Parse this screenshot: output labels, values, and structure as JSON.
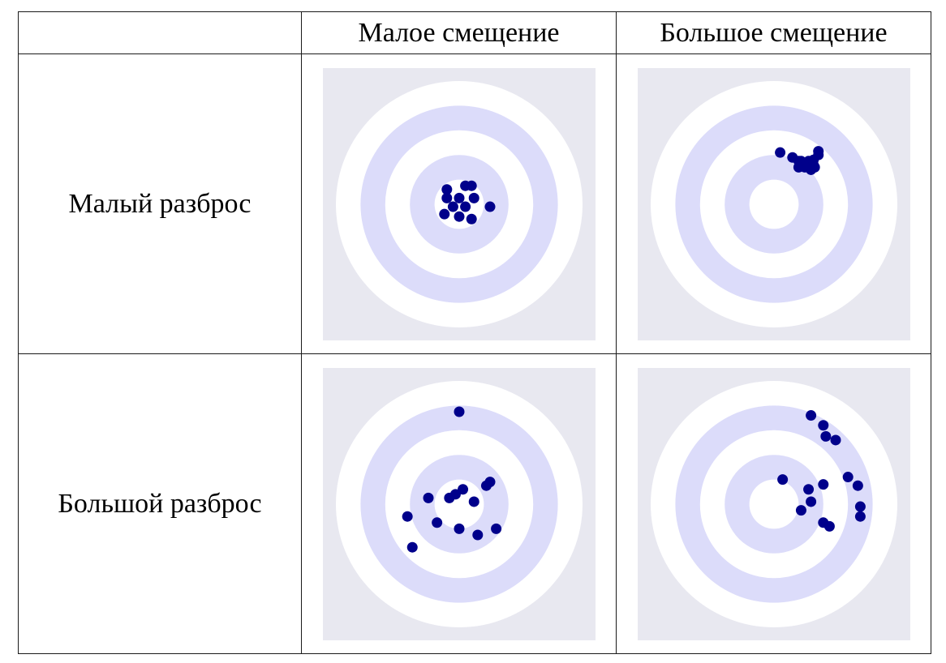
{
  "columns": {
    "low_bias": "Малое смещение",
    "high_bias": "Большое смещение"
  },
  "rows": {
    "low_variance": "Малый разброс",
    "high_variance": "Большой разброс"
  },
  "colors": {
    "background": "#e8e8f0",
    "ring_white": "#ffffff",
    "ring_blue": "#dcdcfa",
    "dot": "#00008b"
  },
  "target": {
    "rings": 5,
    "ring_fill_order": [
      "white",
      "blue",
      "white",
      "blue",
      "white"
    ]
  },
  "panels": {
    "low_bias_low_variance": {
      "row": "low_variance",
      "column": "low_bias",
      "shots": [
        [
          0.05,
          0.15
        ],
        [
          0.1,
          0.15
        ],
        [
          -0.1,
          0.05
        ],
        [
          0.0,
          0.05
        ],
        [
          0.12,
          0.05
        ],
        [
          -0.05,
          -0.02
        ],
        [
          0.05,
          -0.02
        ],
        [
          -0.12,
          -0.08
        ],
        [
          0.0,
          -0.1
        ],
        [
          0.1,
          -0.12
        ],
        [
          0.25,
          -0.02
        ],
        [
          -0.1,
          0.12
        ]
      ]
    },
    "high_bias_low_variance": {
      "row": "low_variance",
      "column": "high_bias",
      "shots": [
        [
          0.05,
          0.42
        ],
        [
          0.15,
          0.38
        ],
        [
          0.2,
          0.35
        ],
        [
          0.22,
          0.35
        ],
        [
          0.28,
          0.35
        ],
        [
          0.32,
          0.36
        ],
        [
          0.32,
          0.32
        ],
        [
          0.33,
          0.3
        ],
        [
          0.25,
          0.3
        ],
        [
          0.3,
          0.28
        ],
        [
          0.36,
          0.4
        ],
        [
          0.36,
          0.43
        ],
        [
          0.2,
          0.3
        ]
      ]
    },
    "low_bias_high_variance": {
      "row": "high_variance",
      "column": "low_bias",
      "shots": [
        [
          0.0,
          0.75
        ],
        [
          -0.25,
          0.05
        ],
        [
          -0.08,
          0.05
        ],
        [
          -0.03,
          0.08
        ],
        [
          0.03,
          0.12
        ],
        [
          0.12,
          0.02
        ],
        [
          0.22,
          0.15
        ],
        [
          0.25,
          0.18
        ],
        [
          -0.42,
          -0.1
        ],
        [
          -0.18,
          -0.15
        ],
        [
          0.0,
          -0.2
        ],
        [
          0.15,
          -0.25
        ],
        [
          0.3,
          -0.2
        ],
        [
          -0.38,
          -0.35
        ]
      ]
    },
    "high_bias_high_variance": {
      "row": "high_variance",
      "column": "high_bias",
      "shots": [
        [
          0.3,
          0.72
        ],
        [
          0.4,
          0.64
        ],
        [
          0.42,
          0.55
        ],
        [
          0.5,
          0.52
        ],
        [
          0.6,
          0.22
        ],
        [
          0.68,
          0.15
        ],
        [
          0.07,
          0.2
        ],
        [
          0.28,
          0.12
        ],
        [
          0.4,
          0.16
        ],
        [
          0.3,
          0.02
        ],
        [
          0.22,
          -0.05
        ],
        [
          0.7,
          -0.02
        ],
        [
          0.7,
          -0.1
        ],
        [
          0.4,
          -0.15
        ],
        [
          0.45,
          -0.18
        ]
      ]
    }
  }
}
